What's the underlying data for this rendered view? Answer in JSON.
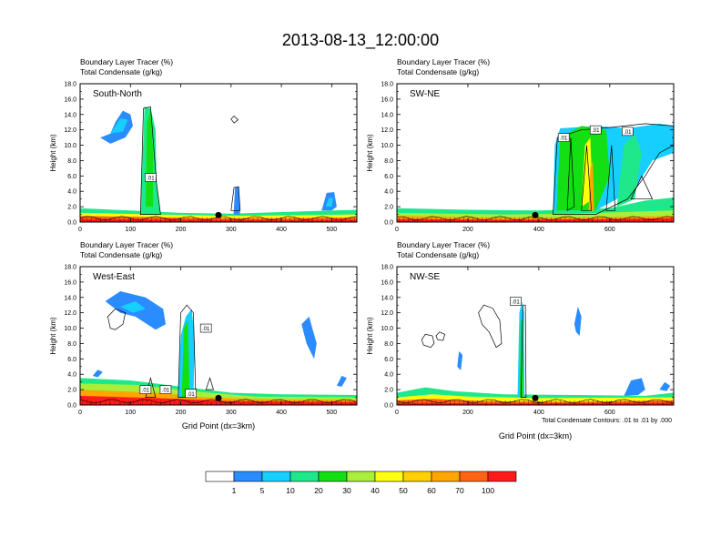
{
  "title": "2013-08-13_12:00:00",
  "footnote": "Total Condensate Contours: .01 to .01 by .000",
  "colorbar": {
    "colors": [
      "#ffffff",
      "#2b8cff",
      "#17cfff",
      "#1fe88a",
      "#12e012",
      "#a6f03c",
      "#ffff10",
      "#ffd000",
      "#ffa500",
      "#ff6314",
      "#ff1a1a"
    ],
    "labels": [
      "1",
      "5",
      "10",
      "20",
      "30",
      "40",
      "50",
      "60",
      "70",
      "100"
    ]
  },
  "chart_data": [
    {
      "type": "heatmap",
      "panel_label": "South-North",
      "subtitle_line1": "Boundary Layer Tracer   (%)",
      "subtitle_line2": "Total Condensate   (g/kg)",
      "ylabel": "Height (km)",
      "xlabel": "",
      "xlim": [
        0,
        550
      ],
      "ylim": [
        0,
        18
      ],
      "xticks": [
        "0",
        "100",
        "200",
        "300",
        "400",
        "500"
      ],
      "yticks": [
        "0.0",
        "2.0",
        "4.0",
        "6.0",
        "8.0",
        "10.0",
        "12.0",
        "14.0",
        "16.0",
        "18.0"
      ],
      "contour_labels": [
        ".01"
      ],
      "marker_x": 275
    },
    {
      "type": "heatmap",
      "panel_label": "SW-NE",
      "subtitle_line1": "Boundary Layer Tracer   (%)",
      "subtitle_line2": "Total Condensate   (g/kg)",
      "ylabel": "Height (km)",
      "xlabel": "",
      "xlim": [
        0,
        780
      ],
      "ylim": [
        0,
        18
      ],
      "xticks": [
        "0",
        "200",
        "400",
        "600"
      ],
      "yticks": [
        "0.0",
        "2.0",
        "4.0",
        "6.0",
        "8.0",
        "10.0",
        "12.0",
        "14.0",
        "16.0",
        "18.0"
      ],
      "contour_labels": [
        ".01",
        ".01",
        ".01"
      ],
      "marker_x": 390
    },
    {
      "type": "heatmap",
      "panel_label": "West-East",
      "subtitle_line1": "Boundary Layer Tracer   (%)",
      "subtitle_line2": "Total Condensate   (g/kg)",
      "ylabel": "Height (km)",
      "xlabel": "Grid Point (dx=3km)",
      "xlim": [
        0,
        550
      ],
      "ylim": [
        0,
        18
      ],
      "xticks": [
        "0",
        "100",
        "200",
        "300",
        "400",
        "500"
      ],
      "yticks": [
        "0.0",
        "2.0",
        "4.0",
        "6.0",
        "8.0",
        "10.0",
        "12.0",
        "14.0",
        "16.0",
        "18.0"
      ],
      "contour_labels": [
        ".01",
        ".01",
        ".01",
        ".01"
      ],
      "marker_x": 275
    },
    {
      "type": "heatmap",
      "panel_label": "NW-SE",
      "subtitle_line1": "Boundary Layer Tracer   (%)",
      "subtitle_line2": "Total Condensate   (g/kg)",
      "ylabel": "Height (km)",
      "xlabel": "Grid Point (dx=3km)",
      "xlim": [
        0,
        780
      ],
      "ylim": [
        0,
        18
      ],
      "xticks": [
        "0",
        "200",
        "400",
        "600"
      ],
      "yticks": [
        "0.0",
        "2.0",
        "4.0",
        "6.0",
        "8.0",
        "10.0",
        "12.0",
        "14.0",
        "16.0",
        "18.0"
      ],
      "contour_labels": [
        ".01"
      ],
      "marker_x": 390
    }
  ]
}
